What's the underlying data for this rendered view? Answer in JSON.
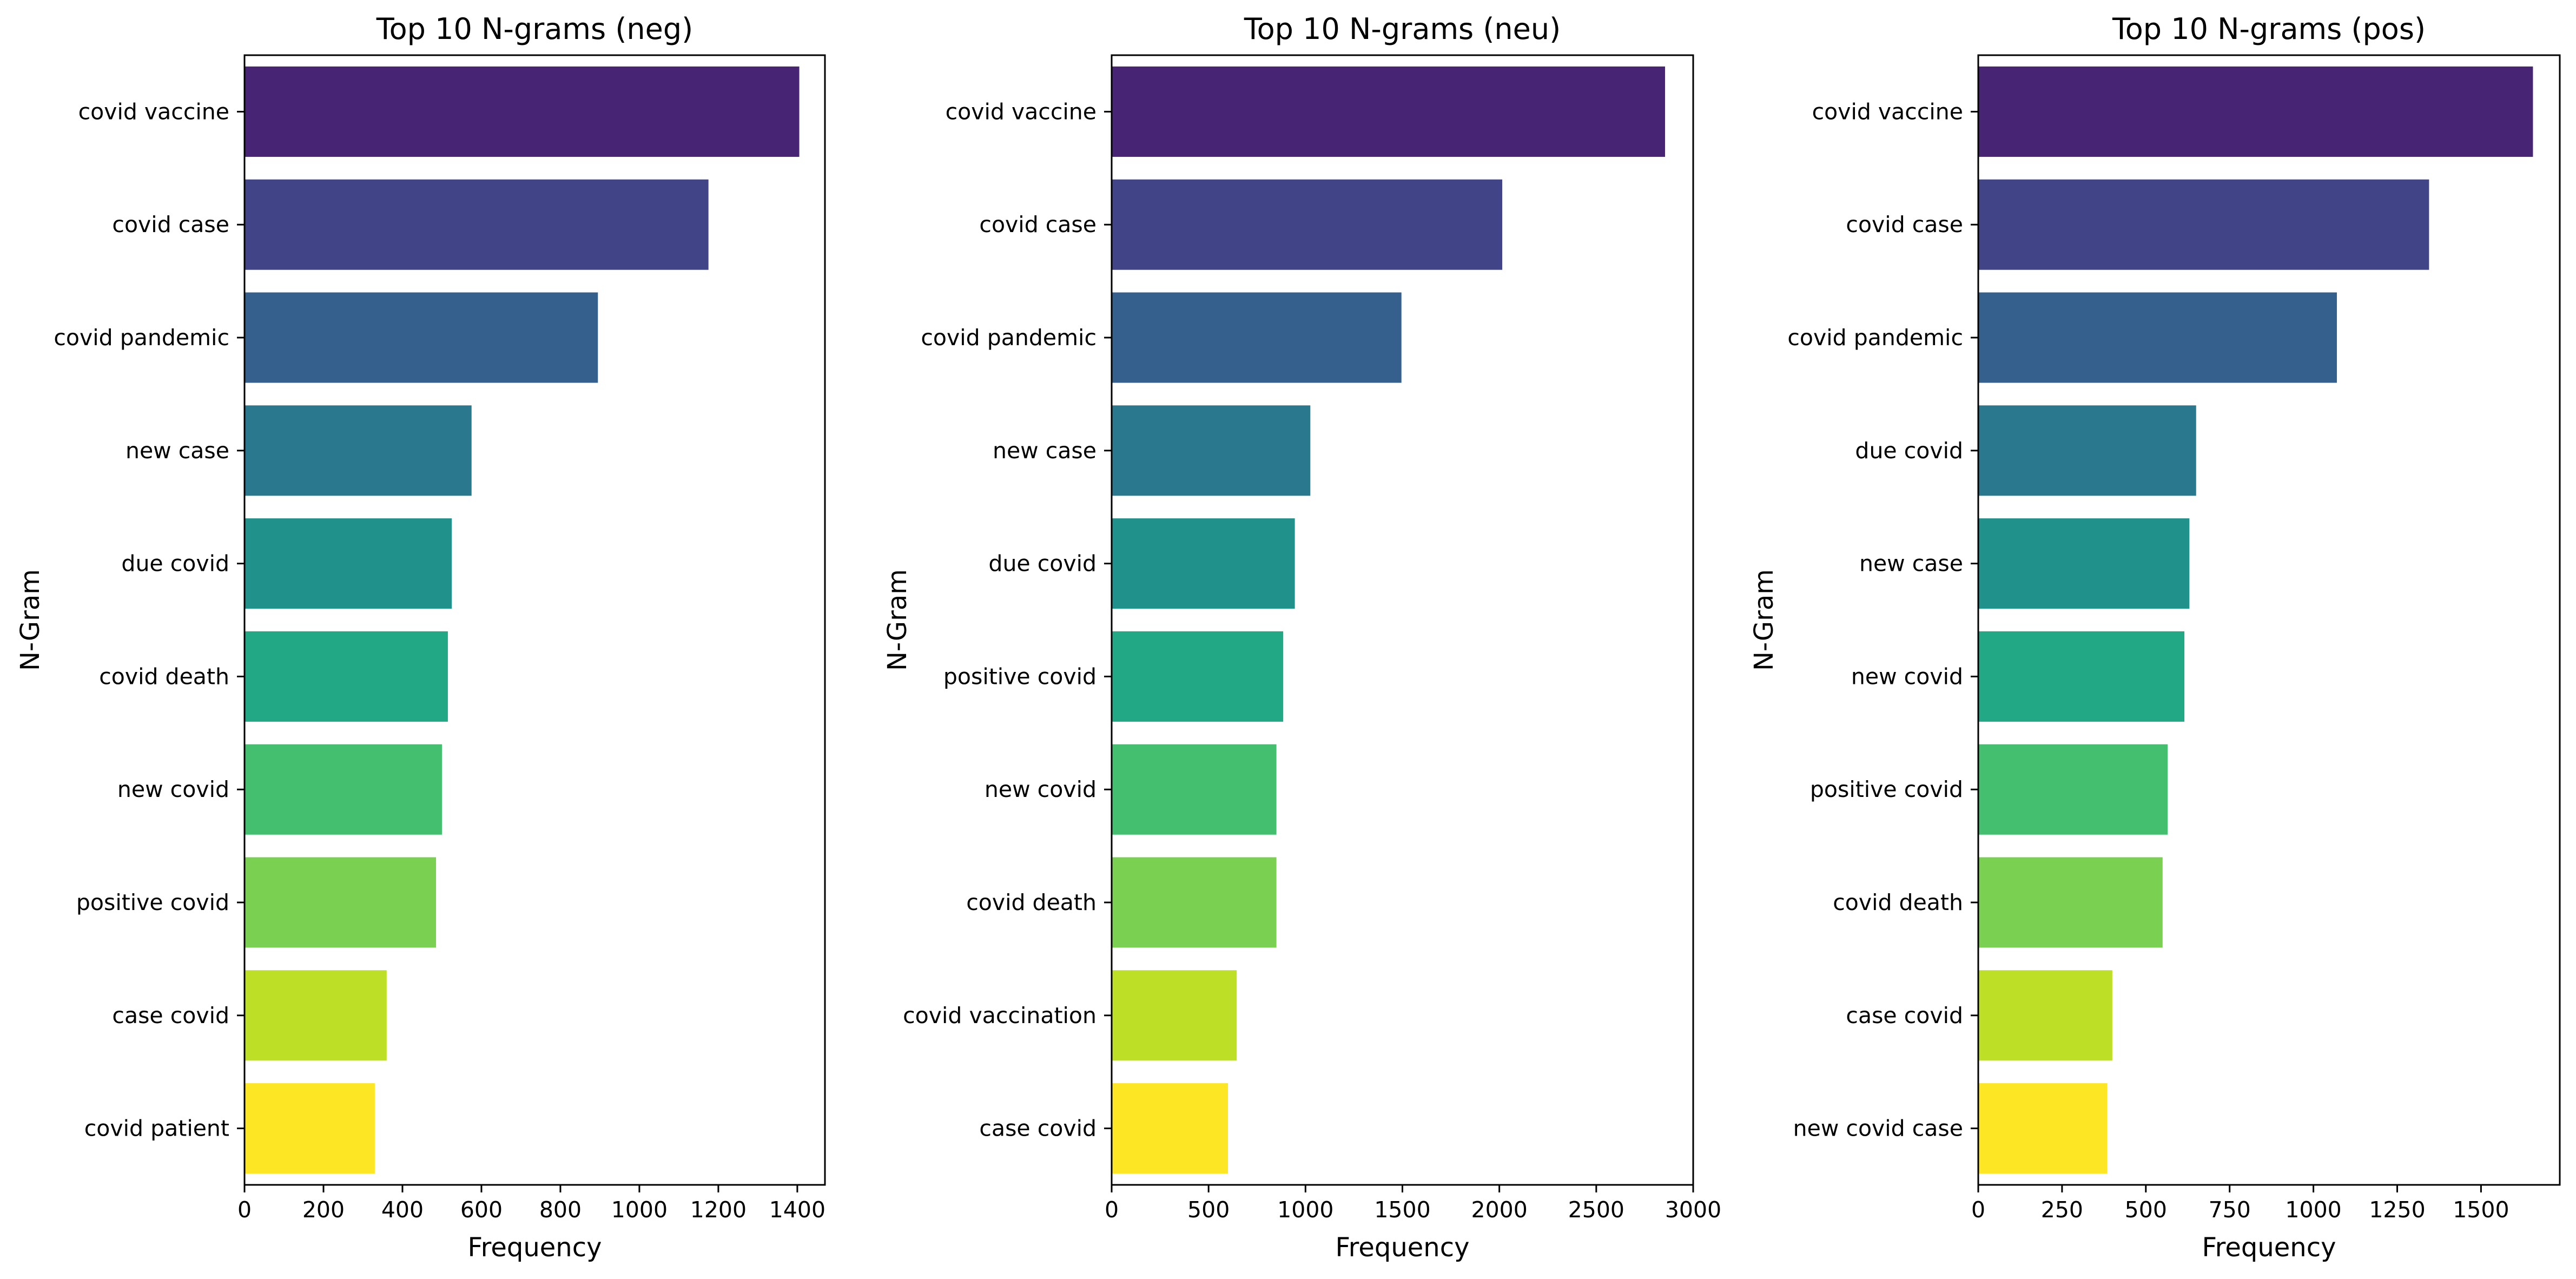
{
  "colors": [
    "#482475",
    "#414487",
    "#355f8d",
    "#2a788e",
    "#21918c",
    "#22a884",
    "#44bf70",
    "#7ad151",
    "#bddf26",
    "#fde725"
  ],
  "chart_data": [
    {
      "type": "bar",
      "orientation": "horizontal",
      "title": "Top 10 N-grams (neg)",
      "xlabel": "Frequency",
      "ylabel": "N-Gram",
      "xlim": [
        0,
        1470
      ],
      "xticks": [
        "0",
        "200",
        "400",
        "600",
        "800",
        "1000",
        "1200",
        "1400"
      ],
      "categories": [
        "covid vaccine",
        "covid case",
        "covid pandemic",
        "new case",
        "due covid",
        "covid death",
        "new covid",
        "positive covid",
        "case covid",
        "covid patient"
      ],
      "values": [
        1405,
        1175,
        895,
        575,
        525,
        515,
        500,
        485,
        360,
        330
      ]
    },
    {
      "type": "bar",
      "orientation": "horizontal",
      "title": "Top 10 N-grams (neu)",
      "xlabel": "Frequency",
      "ylabel": "N-Gram",
      "xlim": [
        0,
        3000
      ],
      "xticks": [
        "0",
        "500",
        "1000",
        "1500",
        "2000",
        "2500",
        "3000"
      ],
      "categories": [
        "covid vaccine",
        "covid case",
        "covid pandemic",
        "new case",
        "due covid",
        "positive covid",
        "new covid",
        "covid death",
        "covid vaccination",
        "case covid"
      ],
      "values": [
        2855,
        2015,
        1495,
        1025,
        945,
        885,
        850,
        850,
        645,
        600
      ]
    },
    {
      "type": "bar",
      "orientation": "horizontal",
      "title": "Top 10 N-grams (pos)",
      "xlabel": "Frequency",
      "ylabel": "N-Gram",
      "xlim": [
        0,
        1735
      ],
      "xticks": [
        "0",
        "250",
        "500",
        "750",
        "1000",
        "1250",
        "1500"
      ],
      "categories": [
        "covid vaccine",
        "covid case",
        "covid pandemic",
        "due covid",
        "new case",
        "new covid",
        "positive covid",
        "covid death",
        "case covid",
        "new covid case"
      ],
      "values": [
        1655,
        1345,
        1070,
        650,
        630,
        615,
        565,
        550,
        400,
        385
      ]
    }
  ]
}
